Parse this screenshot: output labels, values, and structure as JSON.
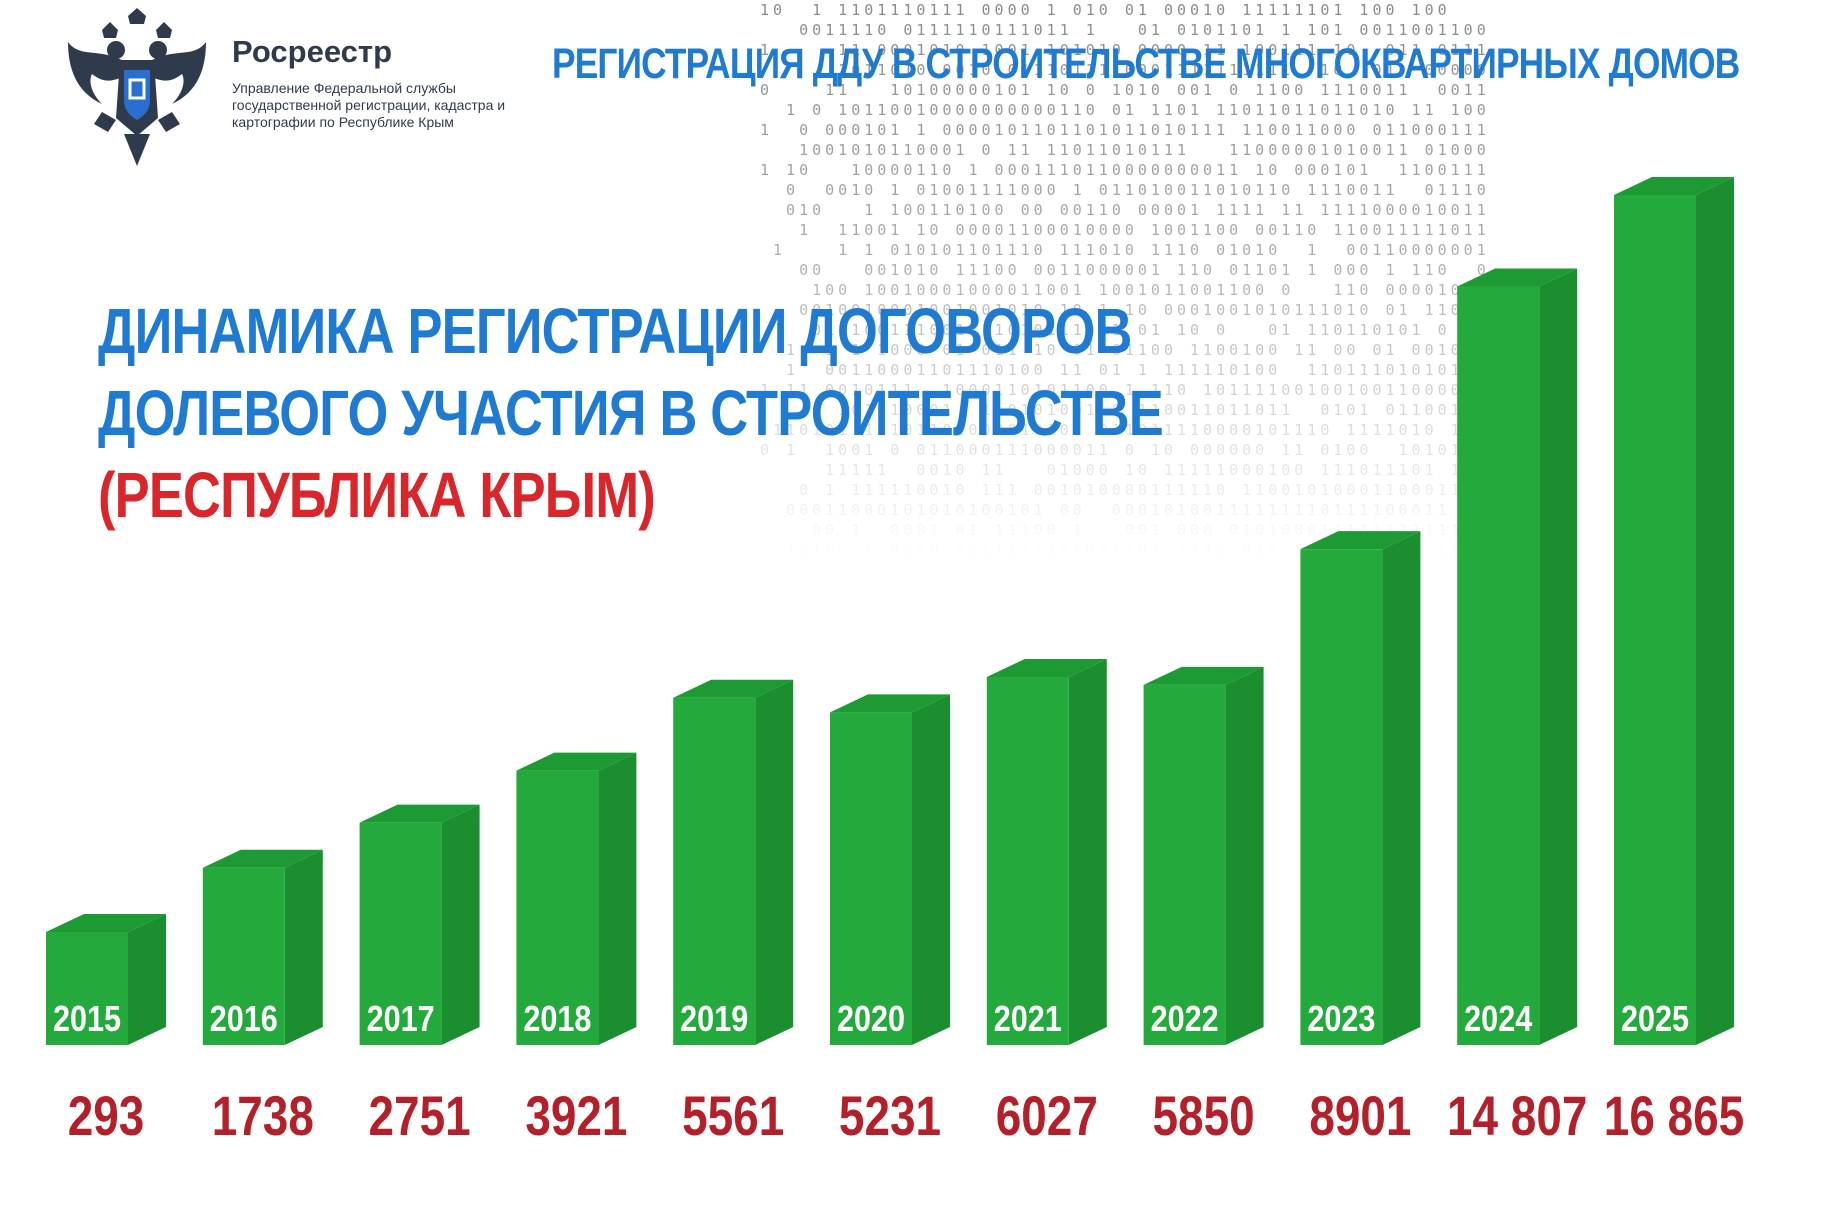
{
  "header": {
    "brand_name": "Росреестр",
    "brand_description": "Управление Федеральной службы государственной регистрации, кадастра и картографии по Республике Крым",
    "title": "РЕГИСТРАЦИЯ  ДДУ В СТРОИТЕЛЬСТВЕ МНОГОКВАРТИРНЫХ ДОМОВ",
    "emblem_icon": "double-headed-eagle-emblem-icon"
  },
  "chart_title": {
    "line1": "ДИНАМИКА РЕГИСТРАЦИИ ДОГОВОРОВ",
    "line2": "ДОЛЕВОГО УЧАСТИЯ В СТРОИТЕЛЬСТВЕ",
    "line3": "(РЕСПУБЛИКА КРЫМ)"
  },
  "colors": {
    "brand_blue": "#1f7ad1",
    "accent_red": "#d8262b",
    "value_red": "#b3202a",
    "bar_front": "#24aa3c",
    "bar_side": "#1b8f2f",
    "bar_top": "#1e9a34",
    "brand_text": "#2f3b4c"
  },
  "chart_data": {
    "type": "bar",
    "style": "3d-column",
    "title": "ДИНАМИКА РЕГИСТРАЦИИ ДОГОВОРОВ ДОЛЕВОГО УЧАСТИЯ В СТРОИТЕЛЬСТВЕ (РЕСПУБЛИКА КРЫМ)",
    "categories": [
      "2015",
      "2016",
      "2017",
      "2018",
      "2019",
      "2020",
      "2021",
      "2022",
      "2023",
      "2024",
      "2025"
    ],
    "values": [
      293,
      1738,
      2751,
      3921,
      5561,
      5231,
      6027,
      5850,
      8901,
      14807,
      16865
    ],
    "value_labels": [
      "293",
      "1738",
      "2751",
      "3921",
      "5561",
      "5231",
      "6027",
      "5850",
      "8901",
      "14 807",
      "16 865"
    ],
    "xlabel": "",
    "ylabel": "",
    "grid": false,
    "legend": "none"
  }
}
